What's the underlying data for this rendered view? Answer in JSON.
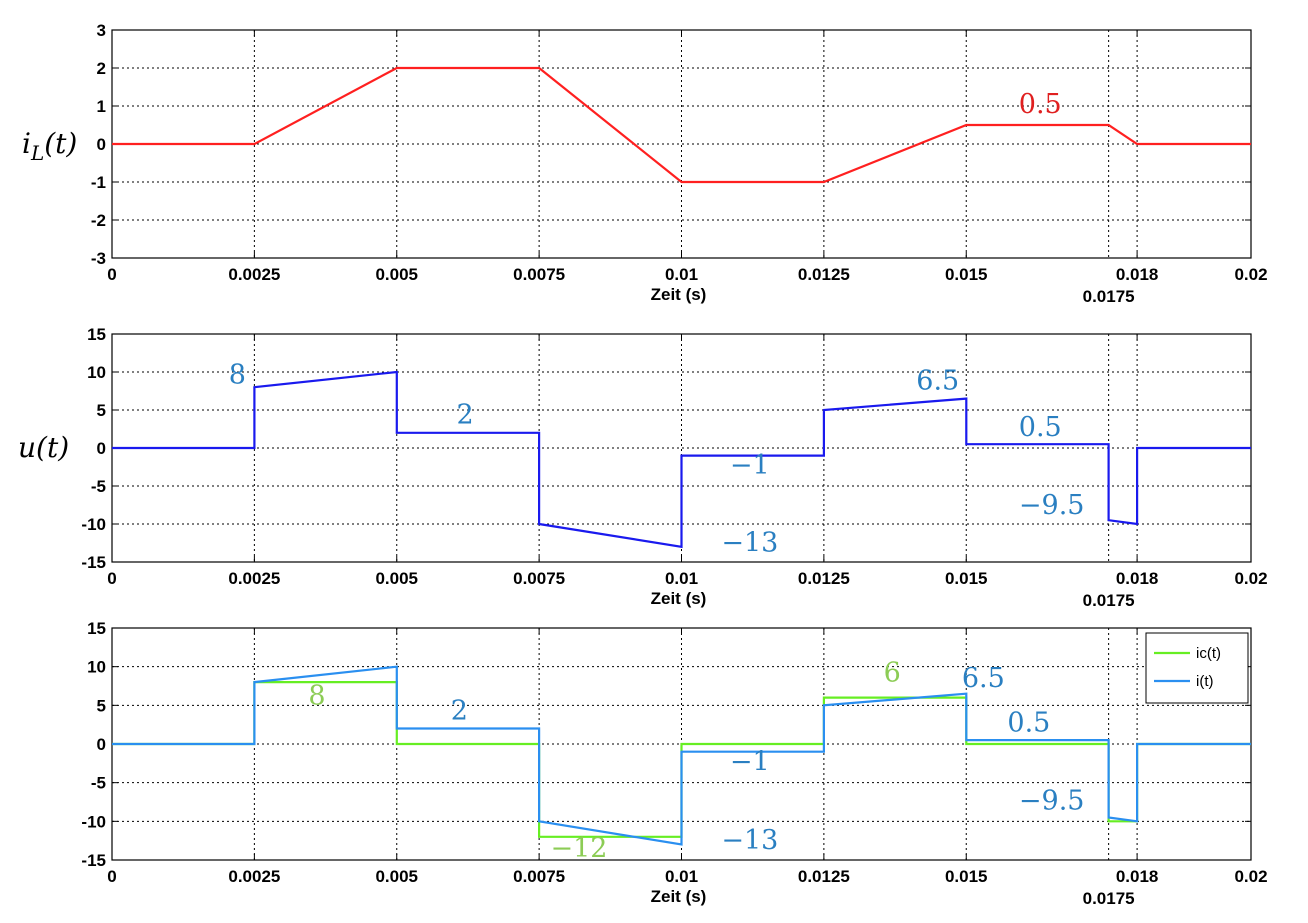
{
  "chart_data": [
    {
      "type": "line",
      "ylabel": "i_L(t)",
      "xlabel": "Zeit (s)",
      "xlim": [
        0,
        0.02
      ],
      "ylim": [
        -3,
        3
      ],
      "xticks": [
        0,
        0.0025,
        0.005,
        0.0075,
        0.01,
        0.0125,
        0.015,
        0.018,
        0.02
      ],
      "xtick_labels": [
        "0",
        "0.0025",
        "0.005",
        "0.0075",
        "0.01",
        "0.0125",
        "0.015",
        "0.018",
        "0.02"
      ],
      "extra_xtick": {
        "value": 0.0175,
        "label": "0.0175"
      },
      "yticks": [
        -3,
        -2,
        -1,
        0,
        1,
        2,
        3
      ],
      "ytick_labels": [
        "-3",
        "-2",
        "-1",
        "0",
        "1",
        "2",
        "3"
      ],
      "grid": true,
      "series": [
        {
          "color": "#ff2020",
          "x": [
            0,
            0.0025,
            0.005,
            0.0075,
            0.01,
            0.0125,
            0.015,
            0.0175,
            0.018,
            0.02
          ],
          "y": [
            0,
            0,
            2,
            2,
            -1,
            -1,
            0.5,
            0.5,
            0,
            0
          ]
        }
      ],
      "annotations": [
        {
          "text": "0.5",
          "x": 0.0163,
          "y": 0.82,
          "color": "#e02020"
        }
      ]
    },
    {
      "type": "line",
      "ylabel": "u(t)",
      "xlabel": "Zeit (s)",
      "xlim": [
        0,
        0.02
      ],
      "ylim": [
        -15,
        15
      ],
      "xticks": [
        0,
        0.0025,
        0.005,
        0.0075,
        0.01,
        0.0125,
        0.015,
        0.018,
        0.02
      ],
      "xtick_labels": [
        "0",
        "0.0025",
        "0.005",
        "0.0075",
        "0.01",
        "0.0125",
        "0.015",
        "0.018",
        "0.02"
      ],
      "extra_xtick": {
        "value": 0.0175,
        "label": "0.0175"
      },
      "yticks": [
        -15,
        -10,
        -5,
        0,
        5,
        10,
        15
      ],
      "ytick_labels": [
        "-15",
        "-10",
        "-5",
        "0",
        "5",
        "10",
        "15"
      ],
      "grid": true,
      "series": [
        {
          "color": "#1a1aee",
          "x": [
            0,
            0.0025,
            0.0025,
            0.005,
            0.005,
            0.0075,
            0.0075,
            0.01,
            0.01,
            0.0125,
            0.0125,
            0.015,
            0.015,
            0.0175,
            0.0175,
            0.018,
            0.018,
            0.02
          ],
          "y": [
            0,
            0,
            8,
            10,
            2,
            2,
            -10,
            -13,
            -1,
            -1,
            5,
            6.5,
            0.5,
            0.5,
            -9.5,
            -10,
            0,
            0
          ]
        }
      ],
      "annotations": [
        {
          "text": "8",
          "x": 0.0022,
          "y": 8.5,
          "color": "#2a7fc1"
        },
        {
          "text": "2",
          "x": 0.0062,
          "y": 3.2,
          "color": "#2a7fc1"
        },
        {
          "text": "−1",
          "x": 0.0112,
          "y": -3.4,
          "color": "#2a7fc1"
        },
        {
          "text": "−13",
          "x": 0.0112,
          "y": -13.6,
          "color": "#2a7fc1"
        },
        {
          "text": "6.5",
          "x": 0.0145,
          "y": 7.7,
          "color": "#2a7fc1"
        },
        {
          "text": "0.5",
          "x": 0.0163,
          "y": 1.6,
          "color": "#2a7fc1"
        },
        {
          "text": "−9.5",
          "x": 0.0165,
          "y": -8.7,
          "color": "#2a7fc1"
        }
      ]
    },
    {
      "type": "line",
      "xlabel": "Zeit (s)",
      "xlim": [
        0,
        0.02
      ],
      "ylim": [
        -15,
        15
      ],
      "xticks": [
        0,
        0.0025,
        0.005,
        0.0075,
        0.01,
        0.0125,
        0.015,
        0.018,
        0.02
      ],
      "xtick_labels": [
        "0",
        "0.0025",
        "0.005",
        "0.0075",
        "0.01",
        "0.0125",
        "0.015",
        "0.018",
        "0.02"
      ],
      "extra_xtick": {
        "value": 0.0175,
        "label": "0.0175"
      },
      "yticks": [
        -15,
        -10,
        -5,
        0,
        5,
        10,
        15
      ],
      "ytick_labels": [
        "-15",
        "-10",
        "-5",
        "0",
        "5",
        "10",
        "15"
      ],
      "grid": true,
      "legend_position": "top-right",
      "series": [
        {
          "name": "ic(t)",
          "color": "#66ee22",
          "x": [
            0,
            0.0025,
            0.0025,
            0.005,
            0.005,
            0.0075,
            0.0075,
            0.01,
            0.01,
            0.0125,
            0.0125,
            0.015,
            0.015,
            0.0175,
            0.0175,
            0.018,
            0.018,
            0.02
          ],
          "y": [
            0,
            0,
            8,
            8,
            0,
            0,
            -12,
            -12,
            0,
            0,
            6,
            6,
            0,
            0,
            -10,
            -10,
            0,
            0
          ]
        },
        {
          "name": "i(t)",
          "color": "#2a8ff0",
          "x": [
            0,
            0.0025,
            0.0025,
            0.005,
            0.005,
            0.0075,
            0.0075,
            0.01,
            0.01,
            0.0125,
            0.0125,
            0.015,
            0.015,
            0.0175,
            0.0175,
            0.018,
            0.018,
            0.02
          ],
          "y": [
            0,
            0,
            8,
            10,
            2,
            2,
            -10,
            -13,
            -1,
            -1,
            5,
            6.5,
            0.5,
            0.5,
            -9.5,
            -10,
            0,
            0
          ]
        }
      ],
      "annotations": [
        {
          "text": "8",
          "x": 0.0036,
          "y": 5.1,
          "color": "#8ccc55"
        },
        {
          "text": "2",
          "x": 0.0061,
          "y": 3.2,
          "color": "#2a7fc1"
        },
        {
          "text": "−12",
          "x": 0.0082,
          "y": -14.6,
          "color": "#8ccc55"
        },
        {
          "text": "−1",
          "x": 0.0112,
          "y": -3.4,
          "color": "#2a7fc1"
        },
        {
          "text": "−13",
          "x": 0.0112,
          "y": -13.6,
          "color": "#2a7fc1"
        },
        {
          "text": "6",
          "x": 0.0137,
          "y": 8.1,
          "color": "#8ccc55"
        },
        {
          "text": "6.5",
          "x": 0.0153,
          "y": 7.4,
          "color": "#2a7fc1"
        },
        {
          "text": "0.5",
          "x": 0.0161,
          "y": 1.6,
          "color": "#2a7fc1"
        },
        {
          "text": "−9.5",
          "x": 0.0165,
          "y": -8.5,
          "color": "#2a7fc1"
        }
      ]
    }
  ]
}
